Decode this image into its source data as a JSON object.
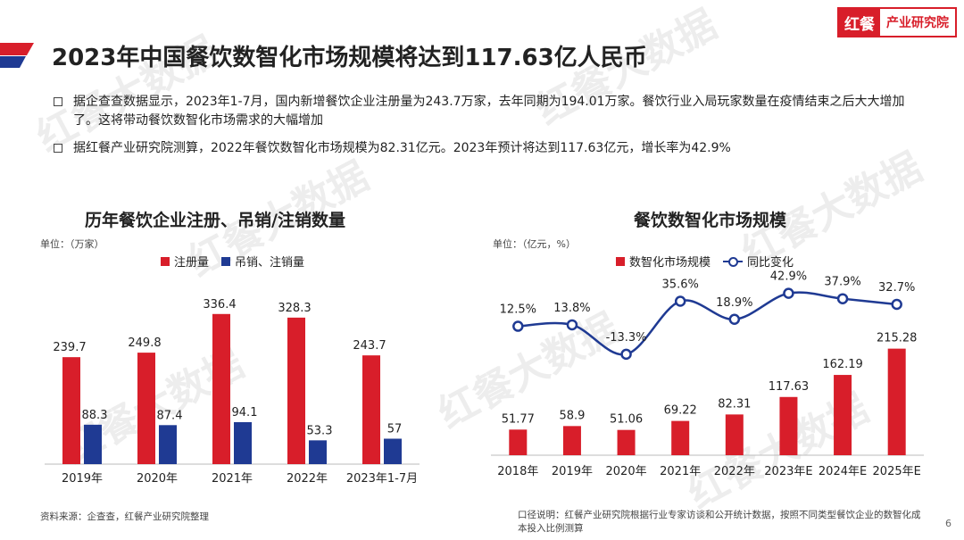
{
  "title": "2023年中国餐饮数智化市场规模将达到117.63亿人民币",
  "logo": {
    "left": "红餐",
    "right": "产业研究院"
  },
  "watermark_text": "红餐大数据",
  "bullets": [
    "据企查查数据显示，2023年1-7月，国内新增餐饮企业注册量为243.7万家，去年同期为194.01万家。餐饮行业入局玩家数量在疫情结束之后大大增加了。这将带动餐饮数智化市场需求的大幅增加",
    "据红餐产业研究院测算，2022年餐饮数智化市场规模为82.31亿元。2023年预计将达到117.63亿元，增长率为42.9%"
  ],
  "chart_data": [
    {
      "type": "bar",
      "title": "历年餐饮企业注册、吊销/注销数量",
      "unit": "单位：（万家）",
      "categories": [
        "2019年",
        "2020年",
        "2021年",
        "2022年",
        "2023年1-7月"
      ],
      "series": [
        {
          "name": "注册量",
          "color": "#d81e2a",
          "values": [
            239.7,
            249.8,
            336.4,
            328.3,
            243.7
          ]
        },
        {
          "name": "吊销、注销量",
          "color": "#1f3a93",
          "values": [
            88.3,
            87.4,
            94.1,
            53.3,
            57
          ]
        }
      ],
      "ylim": [
        0,
        360
      ],
      "grid": false,
      "legend": "top-center"
    },
    {
      "type": "bar",
      "title": "餐饮数智化市场规模",
      "unit": "单位：（亿元，%）",
      "categories": [
        "2018年",
        "2019年",
        "2020年",
        "2021年",
        "2022年",
        "2023年E",
        "2024年E",
        "2025年E"
      ],
      "series": [
        {
          "name": "数智化市场规模",
          "color": "#d81e2a",
          "values": [
            51.77,
            58.9,
            51.06,
            69.22,
            82.31,
            117.63,
            162.19,
            215.28
          ]
        },
        {
          "name": "同比变化",
          "type": "line",
          "color": "#1f3a93",
          "values": [
            12.5,
            13.8,
            -13.3,
            35.6,
            18.9,
            42.9,
            37.9,
            32.7
          ],
          "labels": [
            "12.5%",
            "13.8%",
            "-13.3%",
            "35.6%",
            "18.9%",
            "42.9%",
            "37.9%",
            "32.7%"
          ]
        }
      ],
      "ylim": [
        0,
        220
      ],
      "line_ylim": [
        -20,
        50
      ],
      "grid": false,
      "legend": "top-center"
    }
  ],
  "footnotes": {
    "left": "资料来源：企查查，红餐产业研究院整理",
    "right": "口径说明：红餐产业研究院根据行业专家访谈和公开统计数据，按照不同类型餐饮企业的数智化成本投入比例测算"
  },
  "page_number": "6"
}
